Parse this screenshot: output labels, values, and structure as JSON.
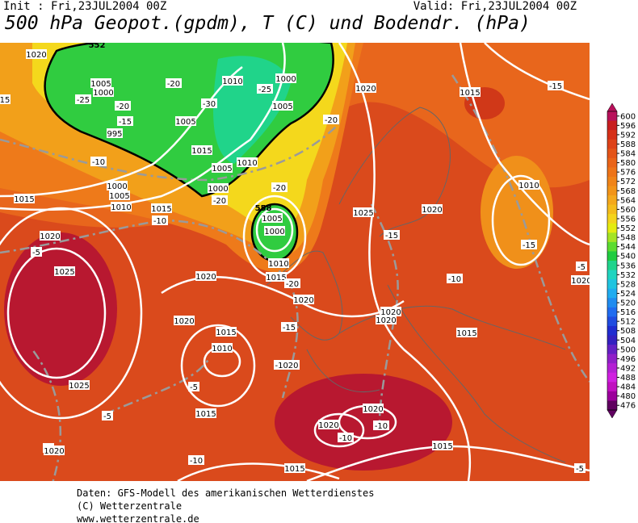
{
  "header": {
    "init": "Init : Fri,23JUL2004 00Z",
    "valid": "Valid: Fri,23JUL2004 00Z",
    "title": "500 hPa Geopot.(gpdm), T (C) und Bodendr. (hPa)"
  },
  "colorbar": {
    "labels": [
      "600",
      "596",
      "592",
      "588",
      "584",
      "580",
      "576",
      "572",
      "568",
      "564",
      "560",
      "556",
      "552",
      "548",
      "544",
      "540",
      "536",
      "532",
      "528",
      "524",
      "520",
      "516",
      "512",
      "508",
      "504",
      "500",
      "496",
      "492",
      "488",
      "484",
      "480",
      "476"
    ],
    "colors": [
      "#b8105a",
      "#c81e20",
      "#d63018",
      "#de4218",
      "#e45418",
      "#ea6418",
      "#ee7418",
      "#f08418",
      "#f29418",
      "#f4a81c",
      "#f4bc1c",
      "#f4d41c",
      "#e4ec10",
      "#a4e424",
      "#5cdc30",
      "#20cc40",
      "#20d48c",
      "#20d4c0",
      "#20c4e0",
      "#20acf0",
      "#208cf0",
      "#206cf0",
      "#204ce0",
      "#202cd0",
      "#3420c0",
      "#6420c4",
      "#9020c8",
      "#b420d4",
      "#d020e0",
      "#c010c0",
      "#9c009c",
      "#600060"
    ]
  },
  "map": {
    "labels": [
      "1020",
      "1005",
      "1000",
      "-20",
      "1010",
      "1000",
      "-25",
      "-20",
      "-25",
      "-30",
      "1005",
      "-15",
      "1005",
      "-20",
      "995",
      "1015",
      "1010",
      "-10",
      "1005",
      "1000",
      "1000",
      "1005",
      "-20",
      "1010",
      "1015",
      "1015",
      "-10",
      "-20",
      "1005",
      "1000",
      "1020",
      "1025",
      "1020",
      "-15",
      "1010",
      "-15",
      "-5",
      "1025",
      "1010",
      "1015",
      "-20",
      "-10",
      "1020",
      "1020",
      "1020",
      "1020",
      "-15",
      "1020",
      "1015",
      "1010",
      "1015",
      "-1020",
      "-5",
      "1025",
      "1020",
      "-10",
      "1020",
      "-10",
      "-5",
      "1015",
      "-5",
      "1020",
      "-10",
      "1015",
      "1015",
      "-5",
      "1015",
      "1020",
      "-15",
      "15",
      "-5",
      "1020",
      "552",
      "558"
    ]
  },
  "footer": {
    "line1": "Daten: GFS-Modell des amerikanischen Wetterdienstes",
    "line2": "(C) Wetterzentrale",
    "line3": "www.wetterzentrale.de"
  }
}
